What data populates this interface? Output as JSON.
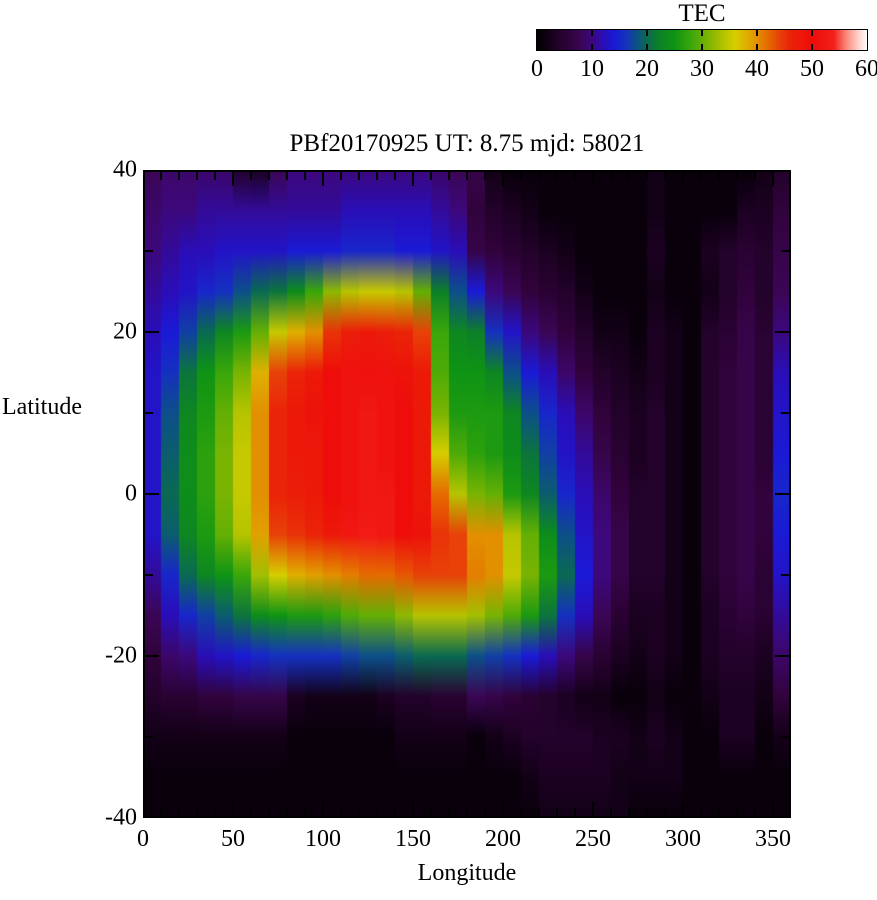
{
  "page": {
    "background": "#ffffff",
    "text_color": "#000000"
  },
  "title": {
    "text": "PBf20170925  UT: 8.75  mjd: 58021"
  },
  "colorbar": {
    "title": "TEC",
    "min": 0,
    "max": 60,
    "tick_values": [
      0,
      10,
      20,
      30,
      40,
      50,
      60
    ],
    "tick_labels": [
      "0",
      "10",
      "20",
      "30",
      "40",
      "50",
      "60"
    ]
  },
  "axes": {
    "x": {
      "label": "Longitude",
      "min": 0,
      "max": 360,
      "major_tick_values": [
        0,
        50,
        100,
        150,
        200,
        250,
        300,
        350
      ],
      "major_tick_labels": [
        "0",
        "50",
        "100",
        "150",
        "200",
        "250",
        "300",
        "350"
      ],
      "minor_step": 10
    },
    "y": {
      "label": "Latitude",
      "min": -40,
      "max": 40,
      "major_tick_values": [
        40,
        20,
        0,
        -20,
        -40
      ],
      "major_tick_labels": [
        "40",
        "20",
        "0",
        "-20",
        "-40"
      ],
      "minor_step": 10
    }
  },
  "chart_data": {
    "type": "heatmap",
    "title": "PBf20170925  UT: 8.75  mjd: 58021",
    "xlabel": "Longitude",
    "ylabel": "Latitude",
    "xlim": [
      0,
      360
    ],
    "ylim": [
      -40,
      40
    ],
    "colorbar_title": "TEC",
    "value_range": [
      0,
      60
    ],
    "lons": [
      0,
      10,
      20,
      30,
      40,
      50,
      60,
      70,
      80,
      90,
      100,
      110,
      120,
      130,
      140,
      150,
      160,
      170,
      180,
      190,
      200,
      210,
      220,
      230,
      240,
      250,
      260,
      270,
      280,
      290,
      300,
      310,
      320,
      330,
      340,
      350
    ],
    "lats": [
      40,
      35,
      30,
      25,
      20,
      15,
      10,
      5,
      0,
      -5,
      -10,
      -15,
      -20,
      -25,
      -30,
      -35,
      -40
    ],
    "tec_values_by_lat_row": [
      [
        8,
        9,
        9,
        9,
        9,
        4,
        3,
        8,
        10,
        10,
        10,
        10,
        10,
        10,
        10,
        10,
        9,
        8,
        7,
        2,
        1,
        1,
        1,
        1,
        1,
        1,
        1,
        1,
        2,
        1,
        1,
        1,
        1,
        1,
        2,
        4
      ],
      [
        9,
        10,
        10,
        11,
        11,
        11,
        11,
        11,
        11,
        11,
        11,
        12,
        12,
        12,
        12,
        12,
        11,
        10,
        6,
        4,
        3,
        2,
        1,
        1,
        1,
        1,
        1,
        1,
        2,
        1,
        1,
        1,
        1,
        3,
        3,
        6
      ],
      [
        10,
        11,
        12,
        12,
        13,
        13,
        13,
        13,
        14,
        14,
        14,
        15,
        15,
        15,
        14,
        14,
        13,
        12,
        7,
        6,
        5,
        4,
        3,
        2,
        1,
        1,
        1,
        1,
        3,
        1,
        1,
        3,
        4,
        5,
        4,
        7
      ],
      [
        11,
        12,
        13,
        15,
        16,
        18,
        20,
        21,
        24,
        28,
        32,
        34,
        35,
        35,
        34,
        30,
        22,
        18,
        14,
        10,
        8,
        6,
        5,
        4,
        2,
        1,
        1,
        1,
        2,
        1,
        1,
        2,
        4,
        6,
        4,
        8
      ],
      [
        12,
        14,
        17,
        20,
        23,
        26,
        30,
        35,
        38,
        40,
        45,
        47,
        48,
        47,
        46,
        44,
        28,
        23,
        22,
        16,
        13,
        10,
        8,
        6,
        4,
        2,
        2,
        1,
        3,
        2,
        1,
        4,
        5,
        7,
        5,
        10
      ],
      [
        13,
        16,
        21,
        25,
        28,
        31,
        38,
        44,
        46,
        48,
        50,
        51,
        51,
        51,
        49,
        48,
        29,
        25,
        25,
        23,
        18,
        14,
        12,
        9,
        6,
        4,
        3,
        2,
        3,
        2,
        1,
        4,
        6,
        7,
        5,
        12
      ],
      [
        13,
        18,
        23,
        26,
        30,
        34,
        40,
        46,
        48,
        49,
        50,
        51,
        52,
        51,
        50,
        48,
        31,
        26,
        26,
        26,
        23,
        18,
        15,
        12,
        9,
        6,
        4,
        3,
        4,
        2,
        1,
        4,
        6,
        7,
        5,
        13
      ],
      [
        13,
        19,
        24,
        27,
        31,
        35,
        40,
        46,
        48,
        48,
        50,
        51,
        52,
        51,
        50,
        48,
        36,
        29,
        27,
        26,
        24,
        21,
        17,
        13,
        11,
        7,
        5,
        3,
        4,
        2,
        1,
        4,
        6,
        7,
        5,
        14
      ],
      [
        13,
        20,
        24,
        27,
        31,
        35,
        40,
        46,
        47,
        48,
        50,
        51,
        52,
        52,
        50,
        48,
        42,
        34,
        31,
        30,
        26,
        23,
        19,
        15,
        12,
        9,
        6,
        4,
        4,
        2,
        1,
        4,
        6,
        7,
        6,
        15
      ],
      [
        13,
        19,
        23,
        26,
        30,
        34,
        39,
        44,
        45,
        46,
        48,
        52,
        53,
        52,
        50,
        49,
        45,
        44,
        40,
        40,
        34,
        30,
        24,
        18,
        13,
        10,
        7,
        4,
        4,
        2,
        1,
        4,
        6,
        7,
        6,
        14
      ],
      [
        11,
        15,
        20,
        23,
        25,
        28,
        33,
        36,
        38,
        39,
        40,
        41,
        42,
        42,
        43,
        44,
        44,
        44,
        41,
        40,
        35,
        31,
        26,
        20,
        14,
        10,
        7,
        4,
        4,
        2,
        1,
        4,
        6,
        7,
        5,
        13
      ],
      [
        8,
        12,
        15,
        17,
        19,
        21,
        24,
        25,
        26,
        26,
        27,
        29,
        30,
        30,
        32,
        34,
        34,
        34,
        33,
        31,
        29,
        26,
        21,
        16,
        12,
        8,
        5,
        3,
        3,
        2,
        1,
        3,
        5,
        6,
        5,
        11
      ],
      [
        6,
        9,
        10,
        12,
        13,
        14,
        15,
        16,
        16,
        16,
        16,
        17,
        18,
        18,
        19,
        20,
        20,
        20,
        18,
        17,
        16,
        14,
        12,
        10,
        7,
        5,
        3,
        2,
        3,
        2,
        1,
        3,
        4,
        4,
        3,
        9
      ],
      [
        4,
        5,
        5,
        6,
        6,
        7,
        7,
        7,
        3,
        2,
        2,
        2,
        2,
        3,
        4,
        4,
        5,
        5,
        8,
        7,
        6,
        5,
        4,
        3,
        2,
        2,
        1,
        1,
        2,
        1,
        1,
        2,
        3,
        3,
        2,
        6
      ],
      [
        2,
        2,
        2,
        2,
        2,
        2,
        2,
        2,
        1,
        1,
        1,
        1,
        1,
        1,
        2,
        2,
        2,
        2,
        1,
        2,
        3,
        4,
        4,
        4,
        4,
        3,
        3,
        2,
        3,
        2,
        1,
        1,
        3,
        3,
        1,
        2
      ],
      [
        1,
        1,
        1,
        1,
        1,
        1,
        1,
        1,
        1,
        1,
        1,
        1,
        1,
        1,
        1,
        1,
        1,
        1,
        1,
        1,
        1,
        2,
        3,
        3,
        3,
        3,
        2,
        2,
        2,
        2,
        1,
        1,
        1,
        1,
        1,
        1
      ],
      [
        1,
        1,
        1,
        1,
        1,
        1,
        1,
        1,
        1,
        1,
        1,
        1,
        1,
        1,
        1,
        1,
        1,
        1,
        1,
        1,
        1,
        1,
        2,
        2,
        2,
        2,
        2,
        1,
        1,
        1,
        1,
        1,
        1,
        1,
        1,
        1
      ]
    ],
    "colormap_stops": [
      [
        0,
        "#000000"
      ],
      [
        3,
        "#1c0122"
      ],
      [
        6,
        "#31033c"
      ],
      [
        8,
        "#3b0655"
      ],
      [
        10,
        "#3c087c"
      ],
      [
        12,
        "#2a0eb8"
      ],
      [
        14,
        "#1b1ad6"
      ],
      [
        16,
        "#1531c0"
      ],
      [
        18,
        "#0d4f8a"
      ],
      [
        20,
        "#0a6a52"
      ],
      [
        22,
        "#0d8028"
      ],
      [
        25,
        "#0f9414"
      ],
      [
        28,
        "#3aa70a"
      ],
      [
        31,
        "#79b403"
      ],
      [
        34,
        "#b6c400"
      ],
      [
        36,
        "#d6ce00"
      ],
      [
        38,
        "#dfb000"
      ],
      [
        40,
        "#e29000"
      ],
      [
        42,
        "#e56b00"
      ],
      [
        44,
        "#e84208"
      ],
      [
        46,
        "#ea2408"
      ],
      [
        50,
        "#ee0d0a"
      ],
      [
        54,
        "#f3201c"
      ],
      [
        56,
        "#f97f70"
      ],
      [
        58,
        "#fcc5bc"
      ],
      [
        60,
        "#ffffff"
      ]
    ],
    "legend_position": "top-right-horizontal-colorbar",
    "grid": false
  }
}
